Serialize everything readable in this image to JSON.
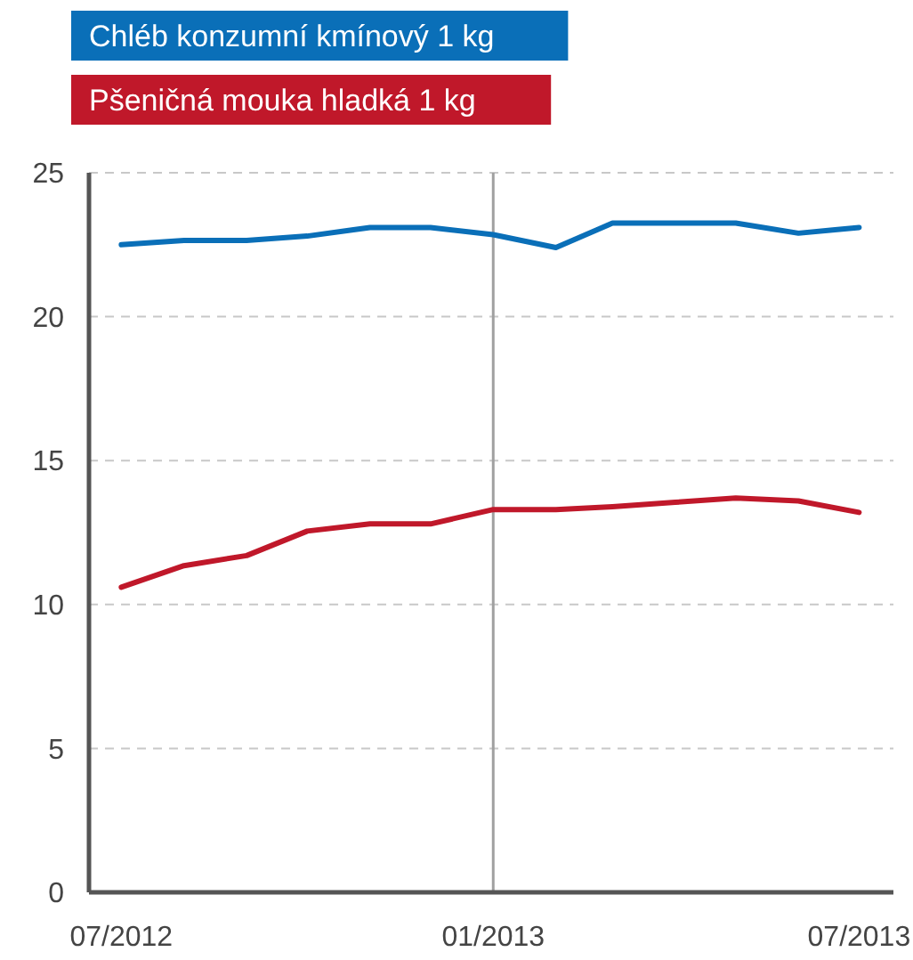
{
  "chart_data": {
    "type": "line",
    "x": [
      "2012-07",
      "2012-08",
      "2012-09",
      "2012-10",
      "2012-11",
      "2012-12",
      "2013-01",
      "2013-02",
      "2013-03",
      "2013-04",
      "2013-05",
      "2013-06",
      "2013-07"
    ],
    "series": [
      {
        "name": "Chléb konzumní kmínový 1 kg",
        "color": "#0a6fb8",
        "values": [
          22.5,
          22.65,
          22.65,
          22.8,
          23.1,
          23.1,
          22.85,
          22.4,
          23.25,
          23.25,
          23.25,
          22.9,
          23.1
        ]
      },
      {
        "name": "Pšeničná mouka hladká 1 kg",
        "color": "#c0182a",
        "values": [
          10.6,
          11.35,
          11.7,
          12.55,
          12.8,
          12.8,
          13.3,
          13.3,
          13.4,
          13.55,
          13.7,
          13.6,
          13.2
        ]
      }
    ],
    "xlim": [
      "2012-06-15",
      "2013-07-18"
    ],
    "xticks": [
      {
        "value": "2012-07",
        "label": "07/2012"
      },
      {
        "value": "2013-01",
        "label": "01/2013"
      },
      {
        "value": "2013-07",
        "label": "07/2013"
      }
    ],
    "ylim": [
      0,
      25
    ],
    "yticks": [
      0,
      5,
      10,
      15,
      20,
      25
    ],
    "grid": "y",
    "legend": "top left",
    "marker": "none",
    "line_style": "solid",
    "ref_lines": [
      {
        "axis": "x",
        "value": "2013-01",
        "color": "#a0a0a0"
      }
    ]
  }
}
